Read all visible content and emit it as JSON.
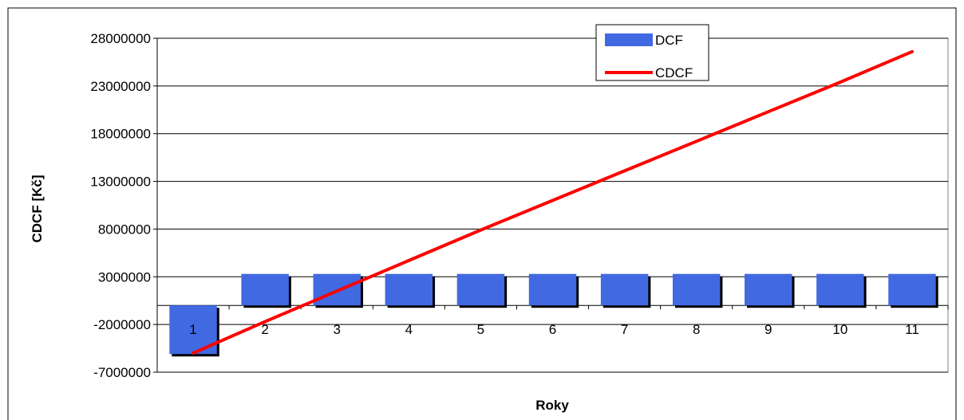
{
  "chart_data": {
    "type": "bar",
    "xlabel": "Roky",
    "ylabel": "CDCF [Kč]",
    "categories": [
      "1",
      "2",
      "3",
      "4",
      "5",
      "6",
      "7",
      "8",
      "9",
      "10",
      "11"
    ],
    "y_ticks": [
      "28000000",
      "23000000",
      "18000000",
      "13000000",
      "8000000",
      "3000000",
      "-2000000",
      "-7000000"
    ],
    "ylim": [
      -7000000,
      28000000
    ],
    "grid": true,
    "legend": "top-right",
    "series": [
      {
        "name": "DCF",
        "kind": "bar",
        "color": "#4169E1",
        "values": [
          -5100000,
          3300000,
          3300000,
          3300000,
          3300000,
          3300000,
          3300000,
          3300000,
          3300000,
          3300000,
          3300000
        ]
      },
      {
        "name": "CDCF",
        "kind": "line",
        "color": "#FF0000",
        "values": [
          -5000000,
          -1700000,
          1500000,
          4700000,
          7900000,
          11000000,
          14100000,
          17200000,
          20300000,
          23400000,
          26600000
        ]
      }
    ]
  }
}
